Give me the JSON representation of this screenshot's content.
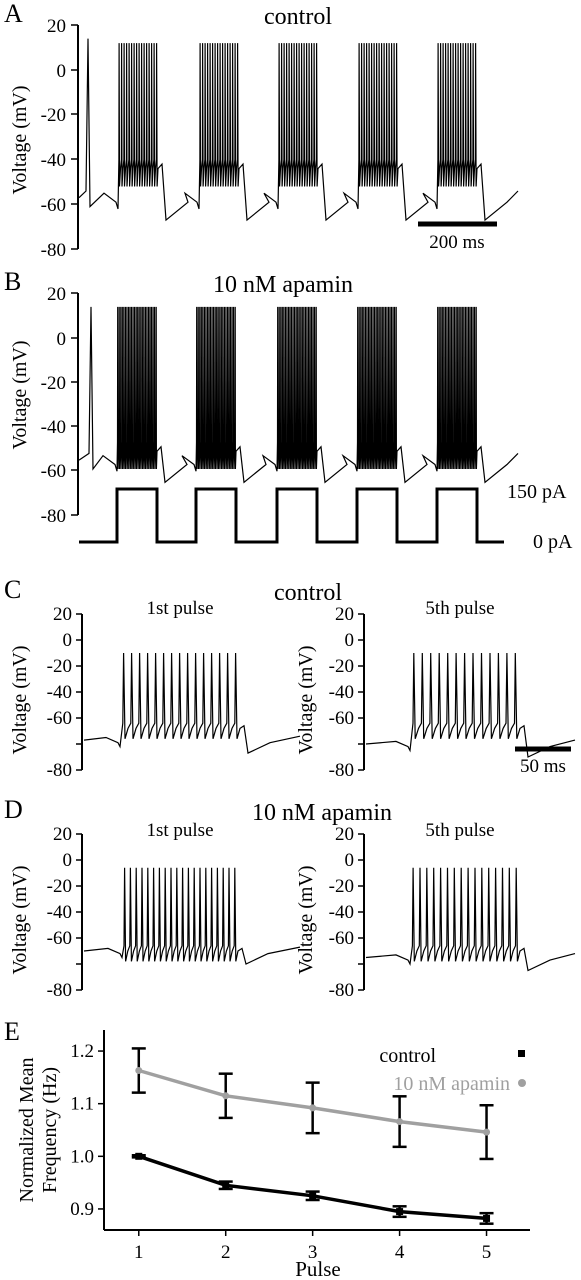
{
  "panels": {
    "A": {
      "letter": "A",
      "title": "control",
      "ylabel": "Voltage (mV)",
      "yticks": [
        "20",
        "0",
        "-20",
        "-40",
        "-60",
        "-80"
      ],
      "scalebar": "200 ms"
    },
    "B": {
      "letter": "B",
      "title": "10 nM apamin",
      "ylabel": "Voltage (mV)",
      "yticks": [
        "20",
        "0",
        "-20",
        "-40",
        "-60",
        "-80"
      ],
      "current_high": "150 pA",
      "current_low": "0 pA"
    },
    "C": {
      "letter": "C",
      "title": "control",
      "left_title": "1st pulse",
      "right_title": "5th pulse",
      "ylabel": "Voltage (mV)",
      "yticks": [
        "20",
        "0",
        "-20",
        "-40",
        "-60",
        "-80"
      ],
      "scalebar": "50 ms"
    },
    "D": {
      "letter": "D",
      "title": "10 nM apamin",
      "left_title": "1st pulse",
      "right_title": "5th pulse",
      "ylabel": "Voltage (mV)",
      "yticks": [
        "20",
        "0",
        "-20",
        "-40",
        "-60",
        "-80"
      ]
    },
    "E": {
      "letter": "E"
    }
  },
  "colors": {
    "control": "#000000",
    "apamin": "#a0a0a0",
    "trace": "#000000"
  },
  "chart_data": {
    "type": "line",
    "xlabel": "Pulse",
    "ylabel": "Normalized Mean Frequency (Hz)",
    "ylabel_lines": [
      "Normalized Mean",
      "Frequency (Hz)"
    ],
    "x": [
      1,
      2,
      3,
      4,
      5
    ],
    "xticks": [
      "1",
      "2",
      "3",
      "4",
      "5"
    ],
    "yticks": [
      "0.9",
      "1.0",
      "1.1",
      "1.2"
    ],
    "xlim": [
      0.6,
      5.5
    ],
    "ylim": [
      0.86,
      1.24
    ],
    "legend_position": "top-right",
    "series": [
      {
        "name": "control",
        "values": [
          1.0,
          0.945,
          0.925,
          0.895,
          0.882
        ],
        "errors": [
          0.002,
          0.007,
          0.008,
          0.01,
          0.01
        ],
        "color": "#000000"
      },
      {
        "name": "10 nM apamin",
        "values": [
          1.163,
          1.115,
          1.092,
          1.066,
          1.046
        ],
        "errors": [
          0.042,
          0.042,
          0.048,
          0.048,
          0.051
        ],
        "color": "#a0a0a0"
      }
    ]
  }
}
